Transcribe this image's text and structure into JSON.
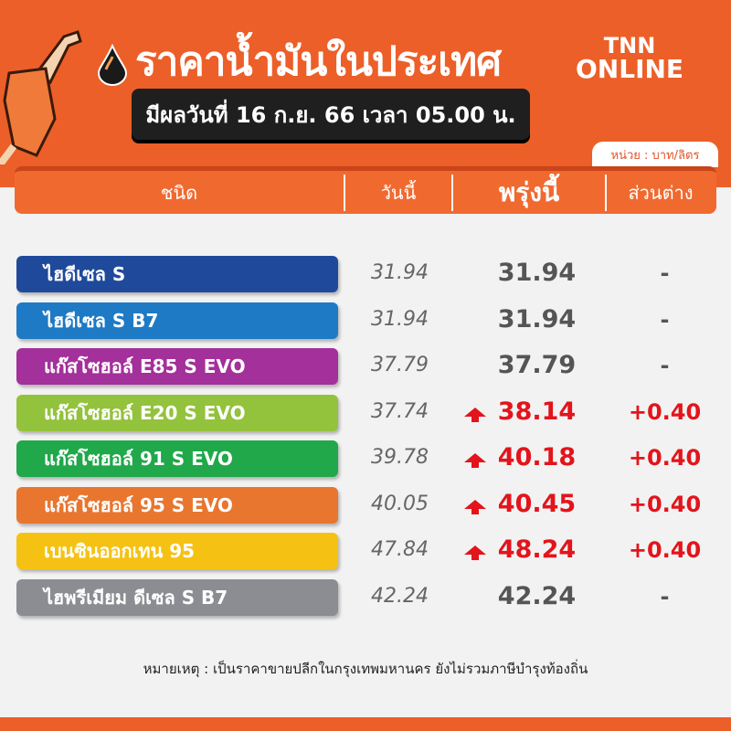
{
  "header": {
    "title": "ราคาน้ำมันในประเทศ",
    "effective_date": "มีผลวันที่ 16 ก.ย. 66 เวลา 05.00 น.",
    "logo_line1": "TNN",
    "logo_line2": "ONLINE",
    "unit": "หน่วย : บาท/ลิตร"
  },
  "columns": {
    "type": "ชนิด",
    "today": "วันนี้",
    "tomorrow": "พรุ่งนี้",
    "difference": "ส่วนต่าง"
  },
  "rows": [
    {
      "name": "ไฮดีเซล S",
      "color": "#1f4a9c",
      "today": "31.94",
      "tomorrow": "31.94",
      "diff": "-",
      "up": false
    },
    {
      "name": "ไฮดีเซล S B7",
      "color": "#1e7ac4",
      "today": "31.94",
      "tomorrow": "31.94",
      "diff": "-",
      "up": false
    },
    {
      "name": "แก๊สโซฮอล์ E85 S EVO",
      "color": "#a3309b",
      "today": "37.79",
      "tomorrow": "37.79",
      "diff": "-",
      "up": false
    },
    {
      "name": "แก๊สโซฮอล์ E20 S EVO",
      "color": "#93c23c",
      "today": "37.74",
      "tomorrow": "38.14",
      "diff": "+0.40",
      "up": true
    },
    {
      "name": "แก๊สโซฮอล์ 91 S EVO",
      "color": "#20a84a",
      "today": "39.78",
      "tomorrow": "40.18",
      "diff": "+0.40",
      "up": true
    },
    {
      "name": "แก๊สโซฮอล์ 95 S EVO",
      "color": "#e8762f",
      "today": "40.05",
      "tomorrow": "40.45",
      "diff": "+0.40",
      "up": true
    },
    {
      "name": "เบนซินออกเทน 95",
      "color": "#f5c214",
      "today": "47.84",
      "tomorrow": "48.24",
      "diff": "+0.40",
      "up": true
    },
    {
      "name": "ไฮพรีเมียม ดีเซล S B7",
      "color": "#8b8d92",
      "today": "42.24",
      "tomorrow": "42.24",
      "diff": "-",
      "up": false
    }
  ],
  "note": "หมายเหตุ : เป็นราคาขายปลีกในกรุงเทพมหานคร ยังไม่รวมภาษีบำรุงท้องถิ่น",
  "colors": {
    "brand": "#ec5f28",
    "increase": "#e3141b"
  }
}
